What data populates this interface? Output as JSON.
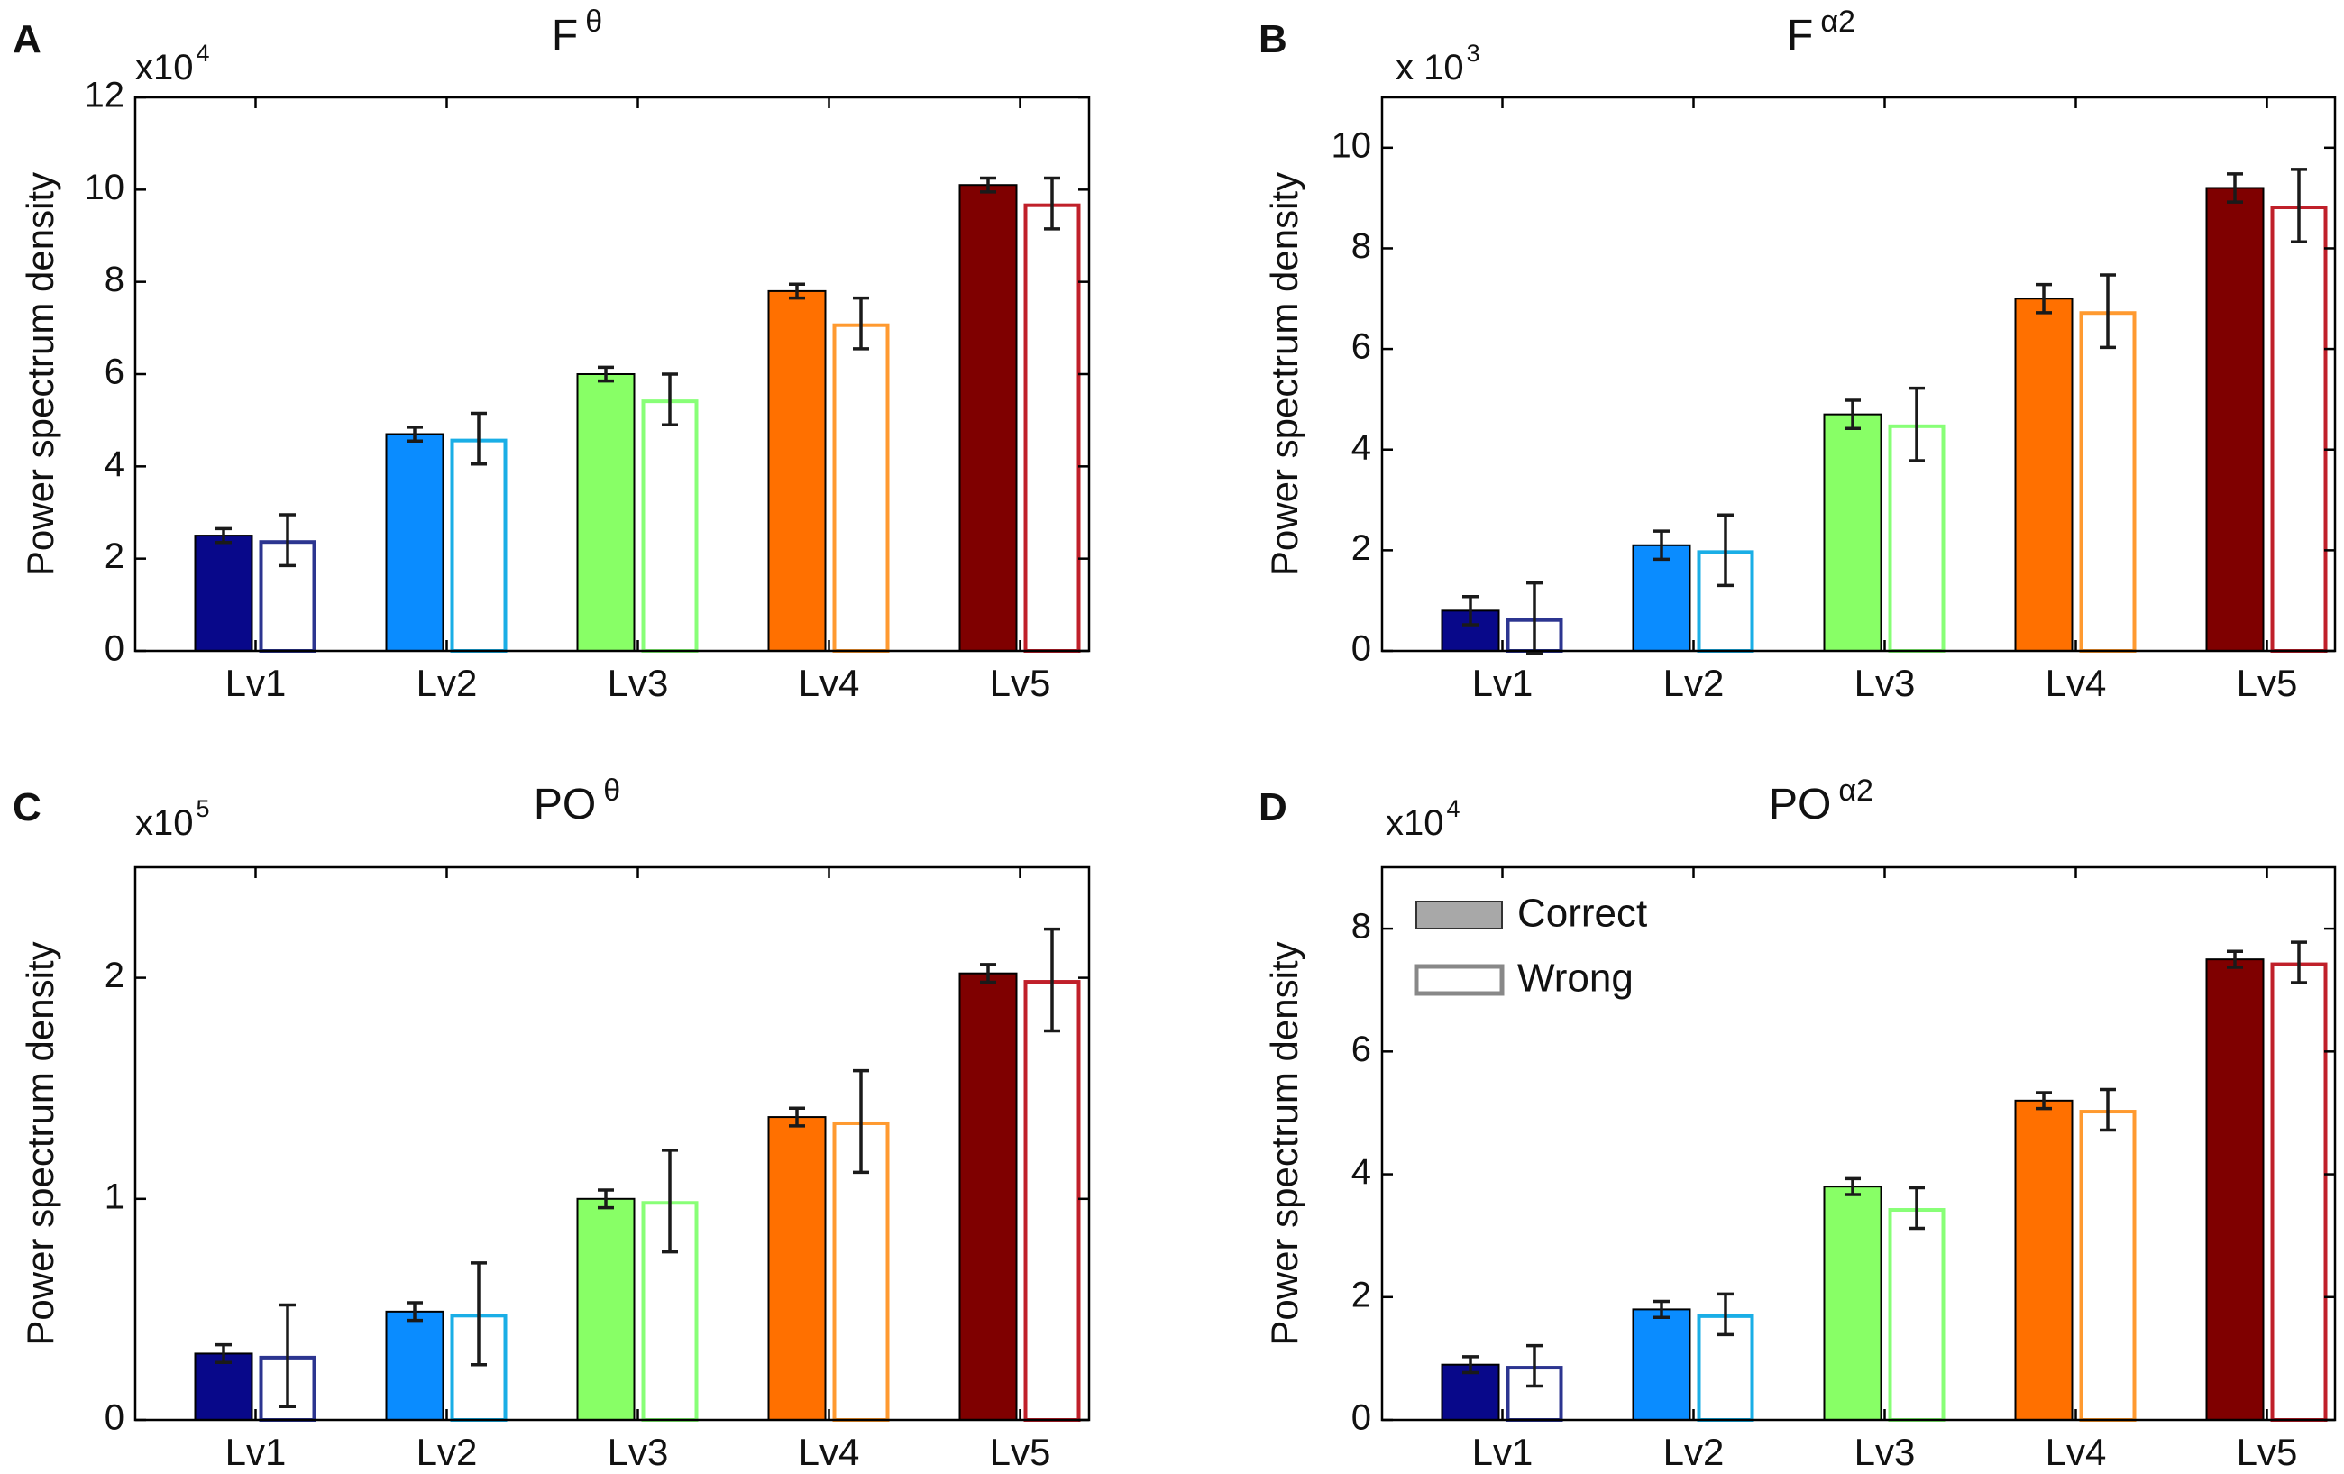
{
  "chart_data": [
    {
      "panel": "A",
      "type": "bar",
      "title": "F",
      "title_superscript": "θ",
      "multiplier_base": "x10",
      "multiplier_exponent": "4",
      "ylabel": "Power spectrum density",
      "xlabel": "",
      "ylim": [
        0,
        12
      ],
      "yticks": [
        0,
        2,
        4,
        6,
        8,
        10,
        12
      ],
      "ytick_labels": [
        "0",
        "2",
        "4",
        "6",
        "8",
        "10",
        "12"
      ],
      "categories": [
        "Lv1",
        "Lv2",
        "Lv3",
        "Lv4",
        "Lv5"
      ],
      "series": [
        {
          "name": "Correct",
          "values": [
            2.5,
            4.7,
            6.0,
            7.8,
            10.1
          ],
          "errors": [
            0.15,
            0.15,
            0.15,
            0.15,
            0.15
          ]
        },
        {
          "name": "Wrong",
          "values": [
            2.4,
            4.6,
            5.45,
            7.1,
            9.7
          ],
          "errors": [
            0.55,
            0.55,
            0.55,
            0.55,
            0.55
          ]
        }
      ]
    },
    {
      "panel": "B",
      "type": "bar",
      "title": "F",
      "title_superscript": "α2",
      "multiplier_base": "x 10",
      "multiplier_exponent": "3",
      "ylabel": "Power spectrum density",
      "xlabel": "",
      "ylim": [
        0,
        11
      ],
      "yticks": [
        0,
        2,
        4,
        6,
        8,
        10
      ],
      "ytick_labels": [
        "0",
        "2",
        "4",
        "6",
        "8",
        "10"
      ],
      "categories": [
        "Lv1",
        "Lv2",
        "Lv3",
        "Lv4",
        "Lv5"
      ],
      "series": [
        {
          "name": "Correct",
          "values": [
            0.8,
            2.1,
            4.7,
            7.0,
            9.2
          ],
          "errors": [
            0.28,
            0.28,
            0.28,
            0.28,
            0.28
          ]
        },
        {
          "name": "Wrong",
          "values": [
            0.65,
            2.0,
            4.5,
            6.75,
            8.85
          ],
          "errors": [
            0.7,
            0.7,
            0.72,
            0.72,
            0.72
          ]
        }
      ]
    },
    {
      "panel": "C",
      "type": "bar",
      "title": "PO",
      "title_superscript": "θ",
      "multiplier_base": "x10",
      "multiplier_exponent": "5",
      "ylabel": "Power spectrum density",
      "xlabel": "",
      "ylim": [
        0,
        2.5
      ],
      "yticks": [
        0,
        1,
        2
      ],
      "ytick_labels": [
        "0",
        "1",
        "2"
      ],
      "categories": [
        "Lv1",
        "Lv2",
        "Lv3",
        "Lv4",
        "Lv5"
      ],
      "series": [
        {
          "name": "Correct",
          "values": [
            0.3,
            0.49,
            1.0,
            1.37,
            2.02
          ],
          "errors": [
            0.04,
            0.04,
            0.04,
            0.04,
            0.04
          ]
        },
        {
          "name": "Wrong",
          "values": [
            0.29,
            0.48,
            0.99,
            1.35,
            1.99
          ],
          "errors": [
            0.23,
            0.23,
            0.23,
            0.23,
            0.23
          ]
        }
      ]
    },
    {
      "panel": "D",
      "type": "bar",
      "title": "PO",
      "title_superscript": "α2",
      "multiplier_base": "x10",
      "multiplier_exponent": "4",
      "ylabel": "Power spectrum density",
      "xlabel": "",
      "ylim": [
        0,
        9
      ],
      "yticks": [
        0,
        2,
        4,
        6,
        8
      ],
      "ytick_labels": [
        "0",
        "2",
        "4",
        "6",
        "8"
      ],
      "categories": [
        "Lv1",
        "Lv2",
        "Lv3",
        "Lv4",
        "Lv5"
      ],
      "series": [
        {
          "name": "Correct",
          "values": [
            0.9,
            1.8,
            3.8,
            5.2,
            7.5
          ],
          "errors": [
            0.13,
            0.13,
            0.13,
            0.13,
            0.13
          ]
        },
        {
          "name": "Wrong",
          "values": [
            0.88,
            1.72,
            3.45,
            5.05,
            7.45
          ],
          "errors": [
            0.33,
            0.33,
            0.33,
            0.33,
            0.33
          ]
        }
      ],
      "legend": {
        "entries": [
          "Correct",
          "Wrong"
        ],
        "placement": "top-left"
      }
    }
  ],
  "colors": {
    "levels": [
      "#08088a",
      "#0a8cff",
      "#88ff66",
      "#ff7000",
      "#7f0000"
    ],
    "wrong_outline": [
      "#2c3590",
      "#1aaee6",
      "#88ff77",
      "#ff9a30",
      "#c0202a"
    ],
    "legend_fill": "#a8a8a8",
    "legend_outline": "#888888",
    "axis": "#000000",
    "errorbar": "#1a1a1a"
  }
}
